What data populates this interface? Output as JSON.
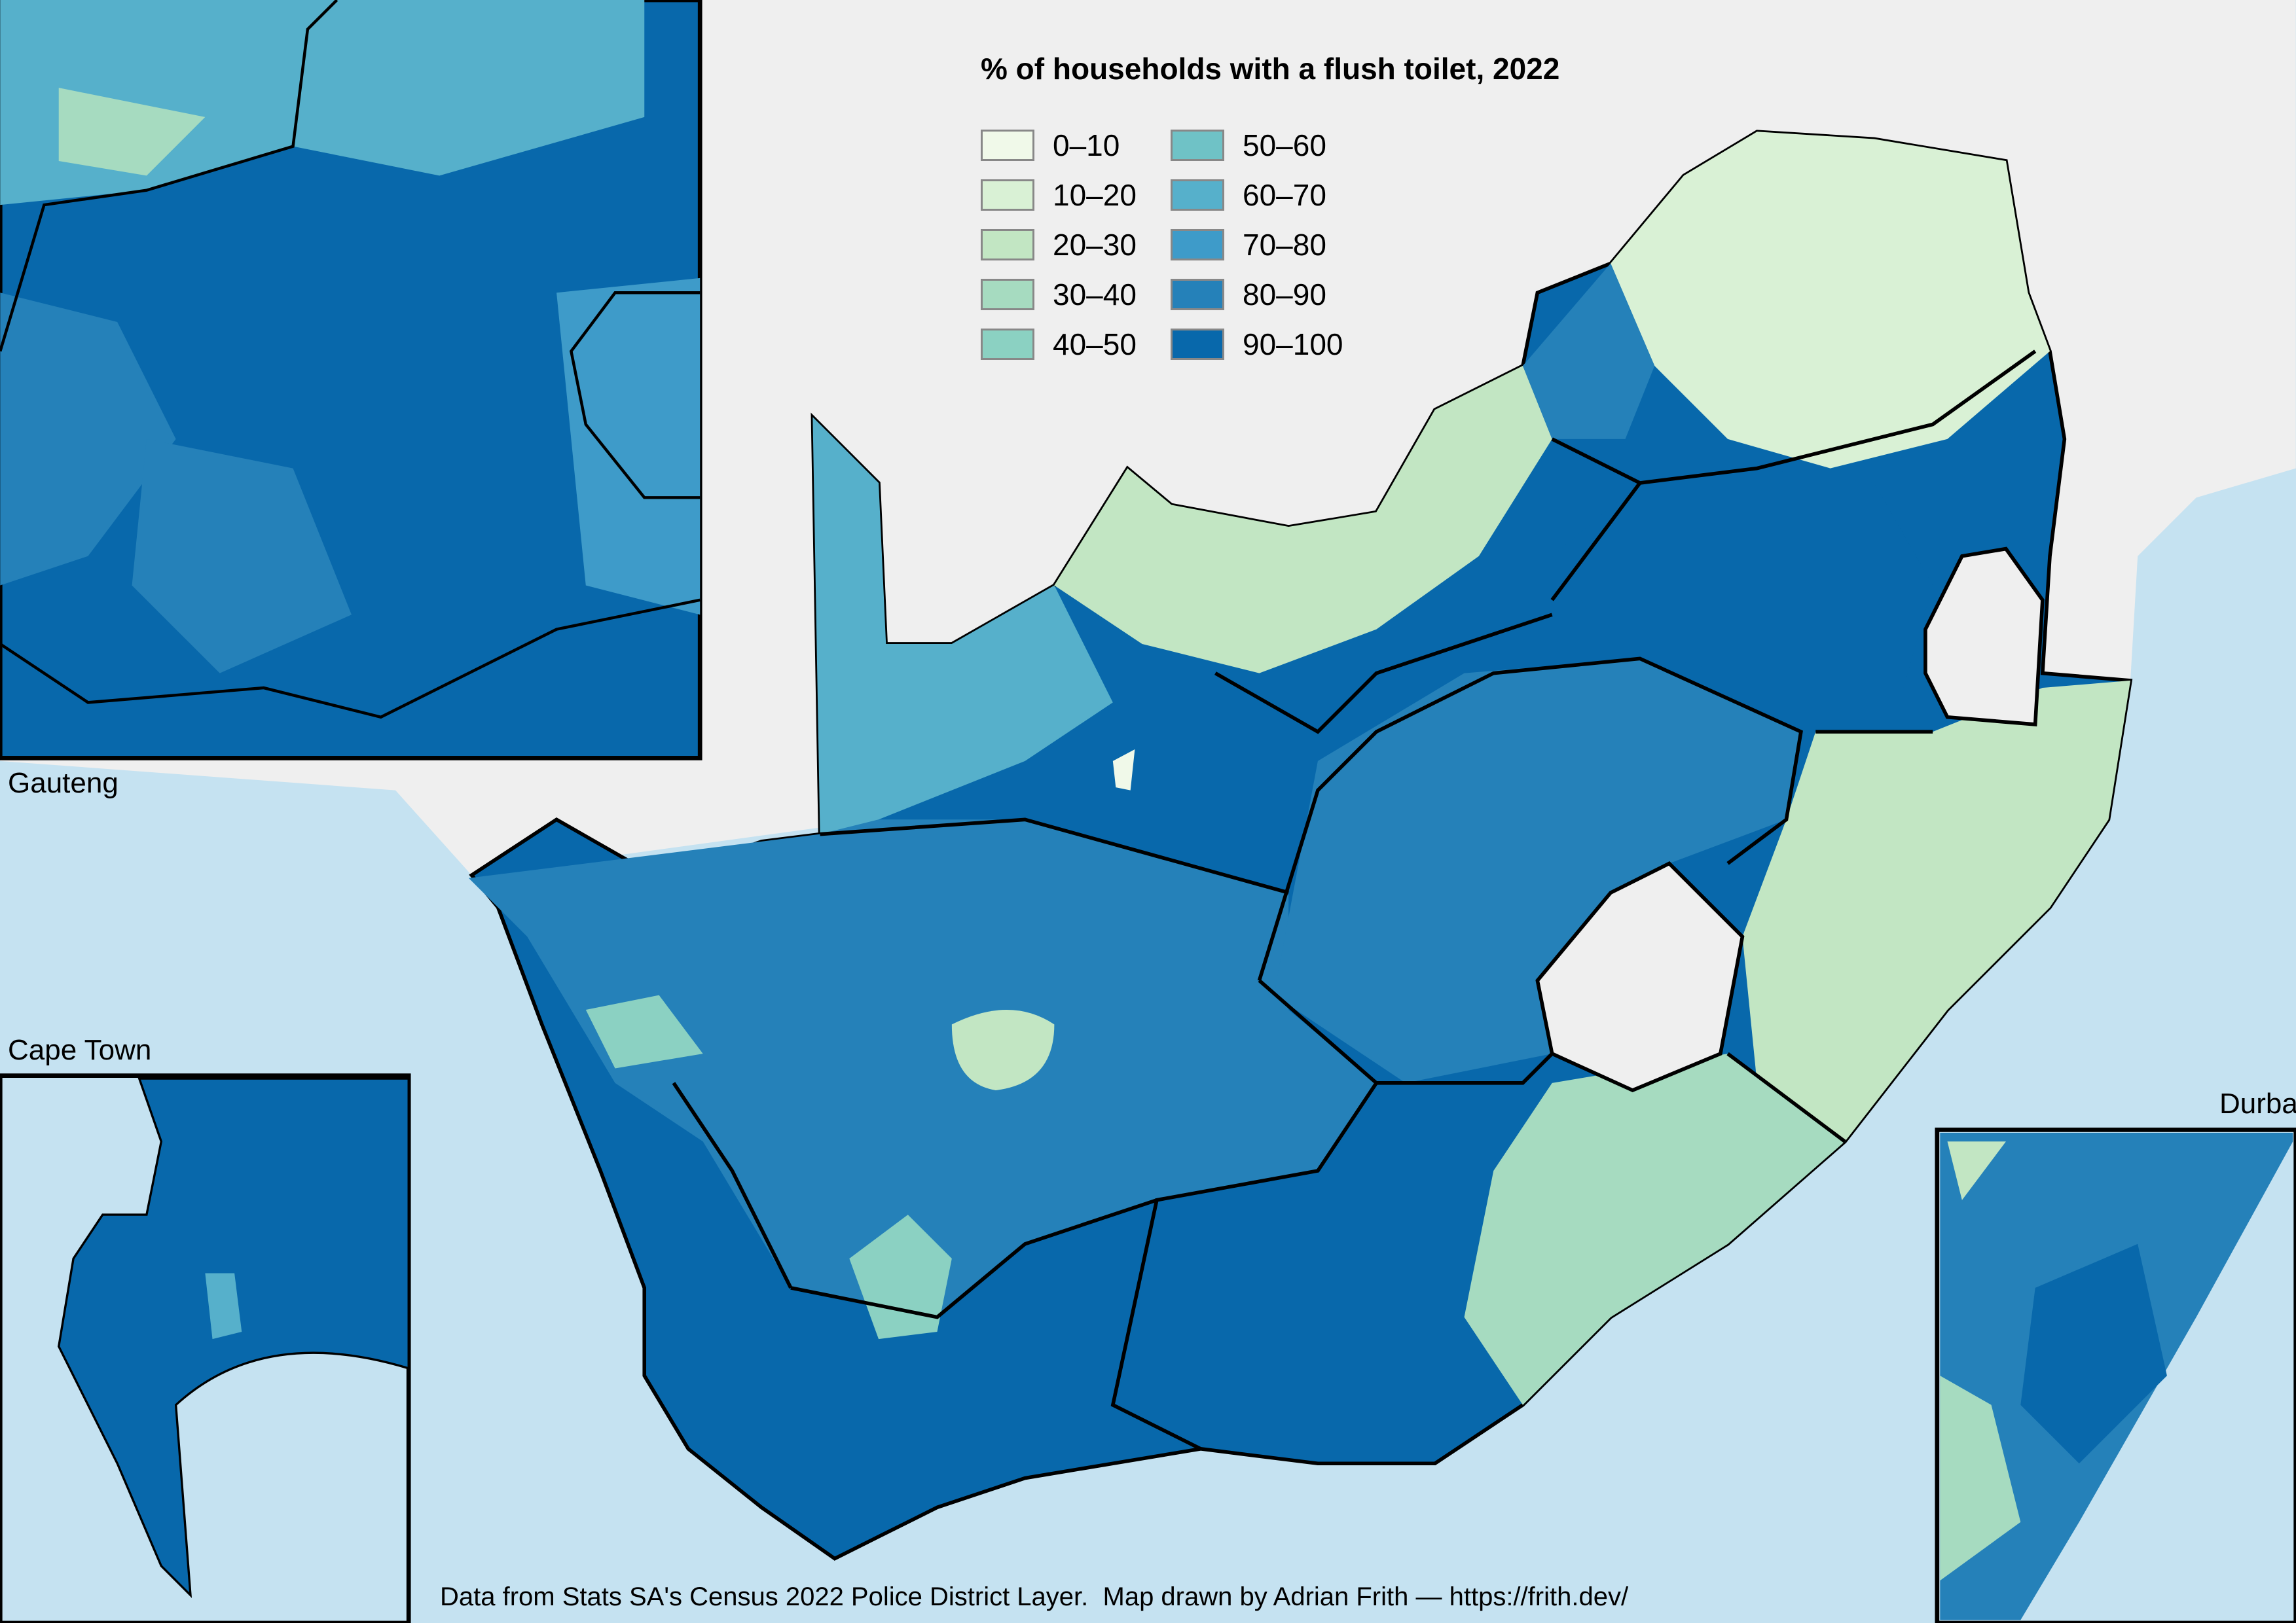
{
  "legend": {
    "title": "% of households with a flush toilet, 2022",
    "items": [
      {
        "label": "0–10",
        "color": "#f0f9e9"
      },
      {
        "label": "10–20",
        "color": "#d9f1d5"
      },
      {
        "label": "20–30",
        "color": "#c2e6c3"
      },
      {
        "label": "30–40",
        "color": "#a6dbc0"
      },
      {
        "label": "40–50",
        "color": "#8bd1c2"
      },
      {
        "label": "50–60",
        "color": "#6fc2c6"
      },
      {
        "label": "60–70",
        "color": "#56b0cb"
      },
      {
        "label": "70–80",
        "color": "#3e9bc9"
      },
      {
        "label": "80–90",
        "color": "#2581b9"
      },
      {
        "label": "90–100",
        "color": "#0868ab"
      }
    ]
  },
  "insets": {
    "gauteng": "Gauteng",
    "cape_town": "Cape Town",
    "durban": "Durban"
  },
  "footer": "Data from Stats SA's Census 2022 Police District Layer.  Map drawn by Adrian Frith — https://frith.dev/",
  "colors": {
    "ocean": "#c5e2f1",
    "other_land": "#efefef",
    "border": "#000000"
  }
}
